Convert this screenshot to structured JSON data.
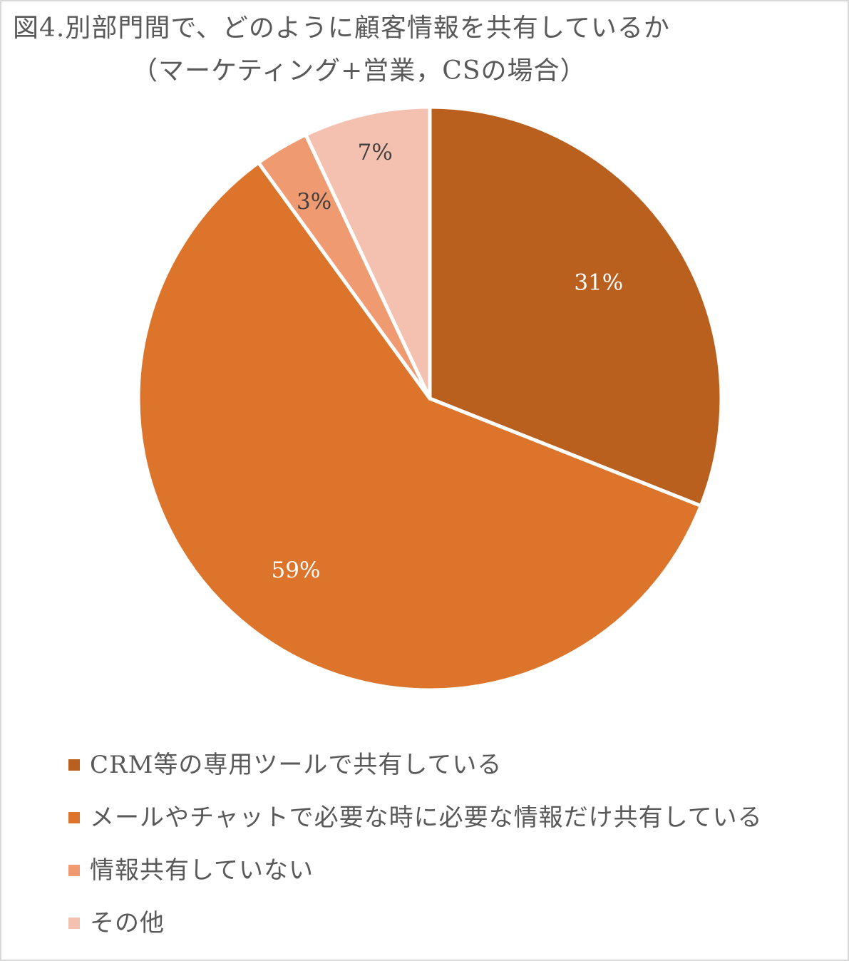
{
  "title": {
    "line1": "図4.別部門間で、どのように顧客情報を共有しているか",
    "line2": "（マーケティング+営業，CSの場合）"
  },
  "chart_data": {
    "type": "pie",
    "title": "図4.別部門間で、どのように顧客情報を共有しているか（マーケティング+営業，CSの場合）",
    "legend_position": "bottom",
    "slices": [
      {
        "name": "CRM等の専用ツールで共有している",
        "value": 31,
        "label": "31%",
        "color": "#b9601f",
        "label_color": "#ffffff"
      },
      {
        "name": "メールやチャットで必要な時に必要な情報だけ共有している",
        "value": 59,
        "label": "59%",
        "color": "#dc742b",
        "label_color": "#ffffff"
      },
      {
        "name": "情報共有していない",
        "value": 3,
        "label": "3%",
        "color": "#ef9a71",
        "label_color": "#404040"
      },
      {
        "name": "その他",
        "value": 7,
        "label": "7%",
        "color": "#f4c1b1",
        "label_color": "#404040"
      }
    ]
  }
}
